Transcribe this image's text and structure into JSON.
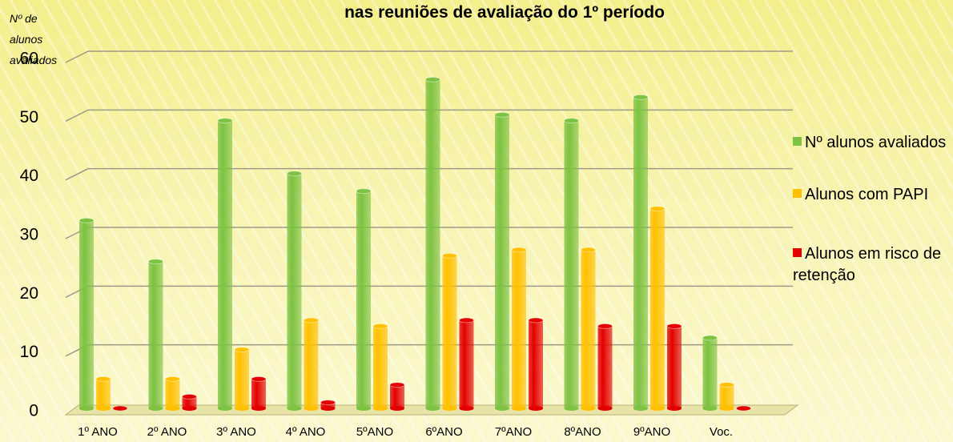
{
  "chart_data": {
    "type": "bar",
    "title": "nas reuniões de avaliação do 1º período",
    "y_label": "Nº de alunos avaliados",
    "categories": [
      "1º ANO",
      "2º ANO",
      "3º ANO",
      "4º ANO",
      "5ºANO",
      "6ºANO",
      "7ºANO",
      "8ºANO",
      "9ºANO",
      "Voc."
    ],
    "series": [
      {
        "name": "Nº alunos avaliados",
        "color": "#7dc242",
        "values": [
          32,
          25,
          49,
          40,
          37,
          56,
          50,
          49,
          53,
          12
        ]
      },
      {
        "name": "Alunos com PAPI",
        "color": "#ffc000",
        "values": [
          5,
          5,
          10,
          15,
          14,
          26,
          27,
          27,
          34,
          4
        ]
      },
      {
        "name": "Alunos em risco de retenção",
        "color": "#e30000",
        "values": [
          0,
          2,
          5,
          1,
          4,
          15,
          15,
          14,
          14,
          0
        ]
      }
    ],
    "ylim": [
      0,
      60
    ],
    "yticks": [
      0,
      10,
      20,
      30,
      40,
      50,
      60
    ],
    "grid": true,
    "legend": "right"
  }
}
